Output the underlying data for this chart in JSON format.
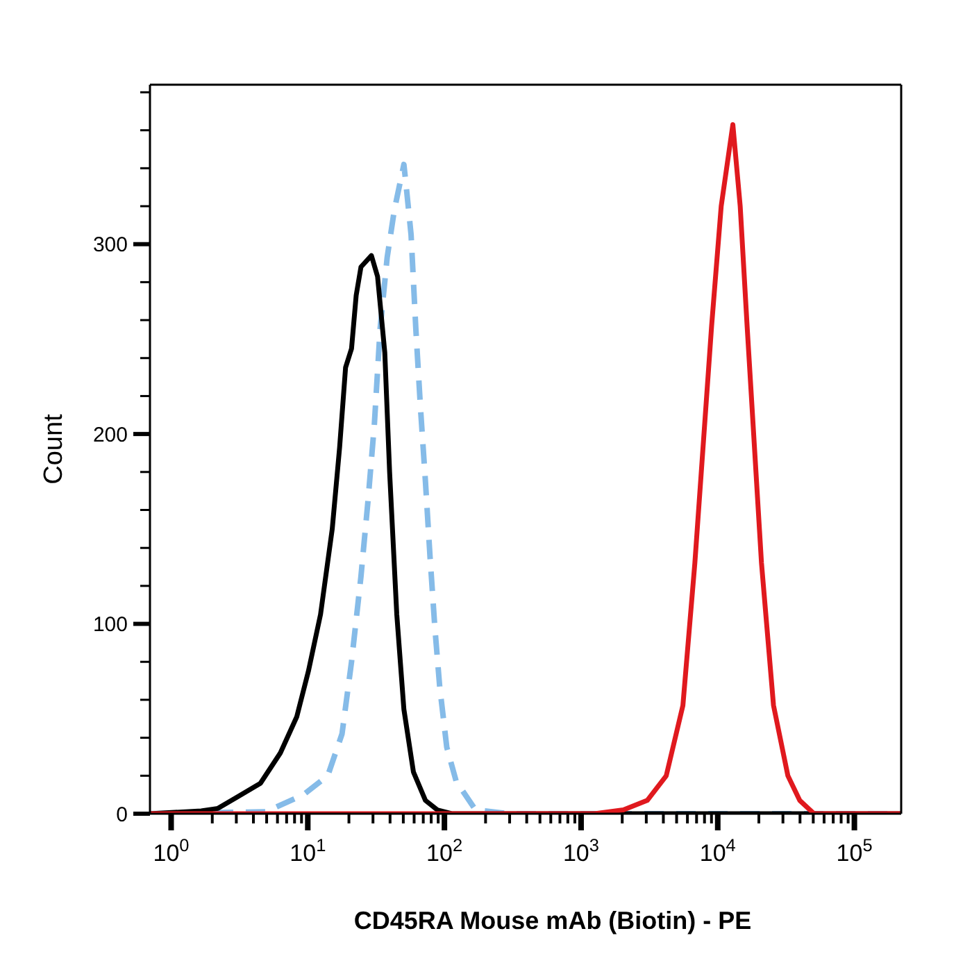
{
  "chart_data": {
    "type": "line",
    "xlabel": "CD45RA Mouse mAb (Biotin) - PE",
    "ylabel": "Count",
    "log": "x",
    "marker": "none",
    "xlim": [
      0.7,
      220000
    ],
    "ylim": [
      0,
      384
    ],
    "xticks": [
      {
        "value": 1,
        "label": "10$^{0}$"
      },
      {
        "value": 2,
        "label": null
      },
      {
        "value": 3,
        "label": null
      },
      {
        "value": 4,
        "label": null
      },
      {
        "value": 5,
        "label": null
      },
      {
        "value": 6,
        "label": null
      },
      {
        "value": 7,
        "label": null
      },
      {
        "value": 8,
        "label": null
      },
      {
        "value": 9,
        "label": null
      },
      {
        "value": 10,
        "label": "10$^{1}$"
      },
      {
        "value": 20,
        "label": null
      },
      {
        "value": 30,
        "label": null
      },
      {
        "value": 40,
        "label": null
      },
      {
        "value": 50,
        "label": null
      },
      {
        "value": 60,
        "label": null
      },
      {
        "value": 70,
        "label": null
      },
      {
        "value": 80,
        "label": null
      },
      {
        "value": 90,
        "label": null
      },
      {
        "value": 100,
        "label": "10$^{2}$"
      },
      {
        "value": 200,
        "label": null
      },
      {
        "value": 300,
        "label": null
      },
      {
        "value": 400,
        "label": null
      },
      {
        "value": 500,
        "label": null
      },
      {
        "value": 600,
        "label": null
      },
      {
        "value": 700,
        "label": null
      },
      {
        "value": 800,
        "label": null
      },
      {
        "value": 900,
        "label": null
      },
      {
        "value": 1000,
        "label": "10$^{3}$"
      },
      {
        "value": 2000,
        "label": null
      },
      {
        "value": 3000,
        "label": null
      },
      {
        "value": 4000,
        "label": null
      },
      {
        "value": 5000,
        "label": null
      },
      {
        "value": 6000,
        "label": null
      },
      {
        "value": 7000,
        "label": null
      },
      {
        "value": 8000,
        "label": null
      },
      {
        "value": 9000,
        "label": null
      },
      {
        "value": 10000,
        "label": "10$^{4}$"
      },
      {
        "value": 20000,
        "label": null
      },
      {
        "value": 30000,
        "label": null
      },
      {
        "value": 40000,
        "label": null
      },
      {
        "value": 50000,
        "label": null
      },
      {
        "value": 60000,
        "label": null
      },
      {
        "value": 70000,
        "label": null
      },
      {
        "value": 80000,
        "label": null
      },
      {
        "value": 90000,
        "label": null
      },
      {
        "value": 100000,
        "label": "10$^{5}$"
      }
    ],
    "yticks": [
      0,
      {
        "value": 20,
        "label": null
      },
      {
        "value": 40,
        "label": null
      },
      {
        "value": 60,
        "label": null
      },
      {
        "value": 80,
        "label": null
      },
      100,
      {
        "value": 120,
        "label": null
      },
      {
        "value": 140,
        "label": null
      },
      {
        "value": 160,
        "label": null
      },
      {
        "value": 180,
        "label": null
      },
      200,
      {
        "value": 220,
        "label": null
      },
      {
        "value": 240,
        "label": null
      },
      {
        "value": 260,
        "label": null
      },
      {
        "value": 280,
        "label": null
      },
      300,
      {
        "value": 320,
        "label": null
      },
      {
        "value": 340,
        "label": null
      },
      {
        "value": 360,
        "label": null
      },
      {
        "value": 380,
        "label": null
      }
    ],
    "series": [
      {
        "color": "#85bbe8",
        "line_style": "dashed",
        "x": [
          0.7,
          4.9,
          9.3,
          14,
          17.8,
          20.9,
          24.5,
          27.6,
          30.7,
          33.8,
          38.1,
          43,
          50.5,
          52.6,
          57,
          61.8,
          66.9,
          72.6,
          78.5,
          85.1,
          92.3,
          104,
          122,
          169,
          296,
          220000
        ],
        "values": [
          0,
          1,
          10,
          20,
          42,
          80,
          125,
          165,
          205,
          255,
          293,
          318,
          342,
          330,
          305,
          255,
          213,
          175,
          135,
          98,
          67,
          35,
          17,
          2,
          0,
          0
        ]
      },
      {
        "color": "#000000",
        "line_style": "solid",
        "x": [
          0.7,
          1.66,
          2.2,
          3,
          4.5,
          6.3,
          8.3,
          10.1,
          12.4,
          15.1,
          17.1,
          18.9,
          20.9,
          22.6,
          24.5,
          29.2,
          32.4,
          36.6,
          39.7,
          44.8,
          50.5,
          59.3,
          72.6,
          88.7,
          113,
          220000
        ],
        "values": [
          0,
          1.5,
          2.8,
          8.5,
          16,
          32,
          51,
          75,
          105,
          150,
          193,
          235,
          245,
          273,
          288,
          294,
          283,
          243,
          180,
          105,
          55,
          22,
          7,
          2,
          0,
          0
        ]
      },
      {
        "color": "#e0191e",
        "line_style": "solid",
        "x": [
          0.7,
          1256,
          2040,
          3050,
          4200,
          5560,
          6800,
          9020,
          10600,
          12900,
          14600,
          16400,
          20900,
          25600,
          32600,
          39800,
          50700,
          220000
        ],
        "values": [
          0,
          0,
          2,
          7,
          20,
          57,
          132,
          257,
          320,
          363,
          320,
          257,
          132,
          57,
          20,
          7,
          0,
          0
        ]
      }
    ]
  }
}
